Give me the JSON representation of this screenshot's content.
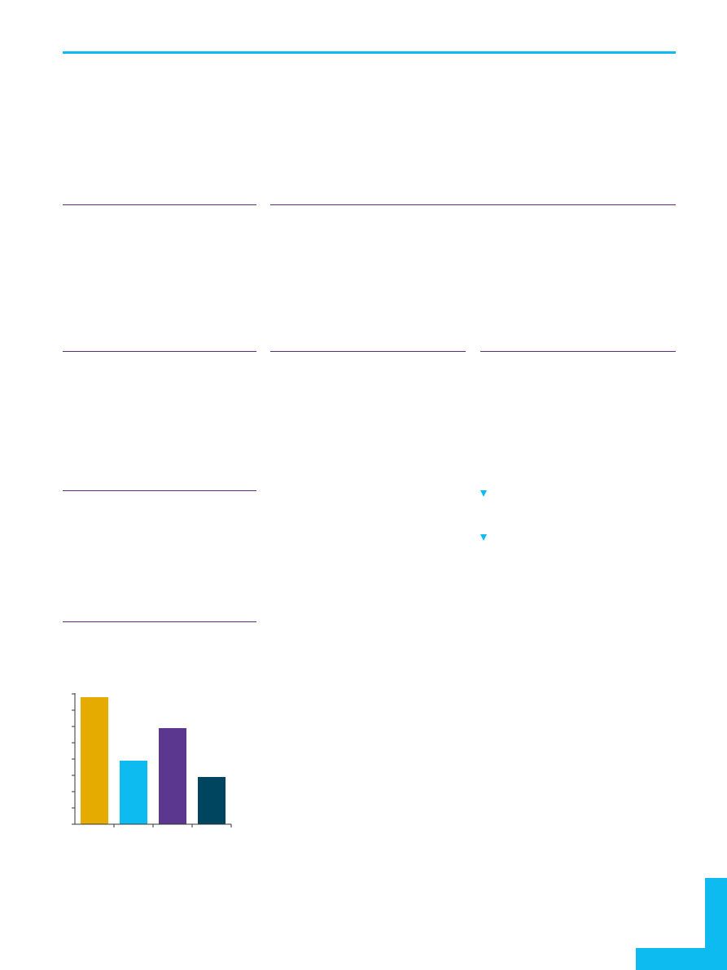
{
  "colors": {
    "accent": "#0dbbf0",
    "rule": "#5b2d82",
    "axis": "#333333"
  },
  "chart_data": {
    "type": "bar",
    "categories": [
      "",
      "",
      "",
      ""
    ],
    "values": [
      7.8,
      3.9,
      5.9,
      2.9
    ],
    "colors": [
      "#e6ab00",
      "#0dbbf0",
      "#5b3790",
      "#00455f"
    ],
    "ylim": [
      0,
      8
    ],
    "yticks": [
      0,
      1,
      2,
      3,
      4,
      5,
      6,
      7,
      8
    ],
    "grid": false,
    "legend": "none"
  },
  "markers": {
    "bullet_icons": [
      "triangle-down",
      "triangle-down"
    ]
  }
}
